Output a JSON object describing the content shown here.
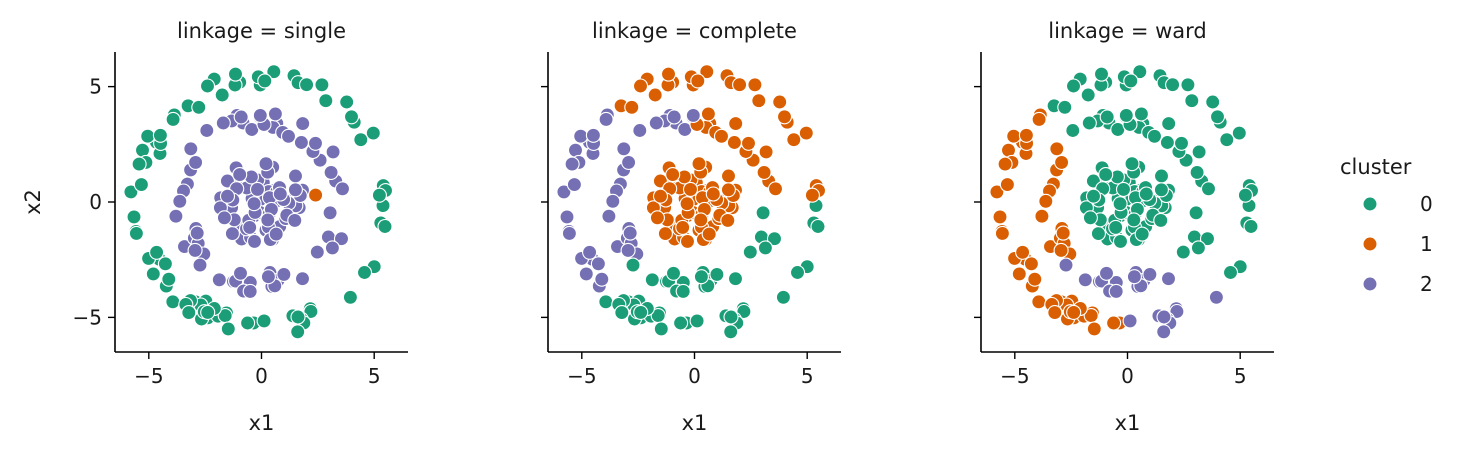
{
  "legend": {
    "title": "cluster",
    "entries": [
      {
        "label": "0",
        "color": "#1b9e77"
      },
      {
        "label": "1",
        "color": "#d95f02"
      },
      {
        "label": "2",
        "color": "#7570b3"
      }
    ]
  },
  "chart_data": [
    {
      "type": "scatter",
      "title": "linkage = single",
      "xlabel": "x1",
      "ylabel": "x2",
      "xlim": [
        -6.5,
        6.5
      ],
      "ylim": [
        -6.5,
        6.5
      ],
      "xticks": [
        -5,
        0,
        5
      ],
      "yticks": [
        -5,
        0,
        5
      ],
      "tick_labels": [
        "−5",
        "0",
        "5"
      ],
      "grid": false,
      "rings": [
        {
          "radius": 5.4,
          "n": 80,
          "sector_labels": [
            0,
            0,
            0,
            0,
            0,
            0,
            0,
            0
          ]
        },
        {
          "radius": 3.5,
          "n": 60,
          "sector_labels": [
            2,
            2,
            2,
            2,
            2,
            2,
            2,
            2
          ]
        },
        {
          "radius": 1.0,
          "n": 70,
          "sector_labels": [
            2,
            2,
            2,
            2,
            2,
            2,
            2,
            2
          ]
        }
      ],
      "extra_points": [
        {
          "x": 2.4,
          "y": 0.3,
          "cluster": 1
        }
      ]
    },
    {
      "type": "scatter",
      "title": "linkage = complete",
      "xlabel": "x1",
      "ylabel": "",
      "xlim": [
        -6.5,
        6.5
      ],
      "ylim": [
        -6.5,
        6.5
      ],
      "xticks": [
        -5,
        0,
        5
      ],
      "yticks": [
        -5,
        0,
        5
      ],
      "tick_labels": [
        "−5",
        "0",
        "5"
      ],
      "grid": false,
      "rings": [
        {
          "radius": 5.4,
          "n": 80,
          "sector_labels": [
            1,
            1,
            1,
            2,
            2,
            0,
            0,
            0
          ]
        },
        {
          "radius": 3.5,
          "n": 60,
          "sector_labels": [
            1,
            1,
            2,
            2,
            2,
            0,
            0,
            0
          ]
        },
        {
          "radius": 1.0,
          "n": 70,
          "sector_labels": [
            1,
            1,
            1,
            1,
            1,
            1,
            1,
            1
          ]
        }
      ],
      "extra_points": []
    },
    {
      "type": "scatter",
      "title": "linkage = ward",
      "xlabel": "x1",
      "ylabel": "",
      "xlim": [
        -6.5,
        6.5
      ],
      "ylim": [
        -6.5,
        6.5
      ],
      "xticks": [
        -5,
        0,
        5
      ],
      "yticks": [
        -5,
        0,
        5
      ],
      "tick_labels": [
        "−5",
        "0",
        "5"
      ],
      "grid": false,
      "rings": [
        {
          "radius": 5.4,
          "n": 80,
          "sector_labels": [
            0,
            0,
            0,
            1,
            1,
            1,
            2,
            0
          ]
        },
        {
          "radius": 3.5,
          "n": 60,
          "sector_labels": [
            0,
            0,
            0,
            1,
            1,
            2,
            2,
            0
          ]
        },
        {
          "radius": 1.0,
          "n": 70,
          "sector_labels": [
            0,
            0,
            0,
            0,
            0,
            0,
            0,
            0
          ]
        }
      ],
      "extra_points": []
    }
  ]
}
